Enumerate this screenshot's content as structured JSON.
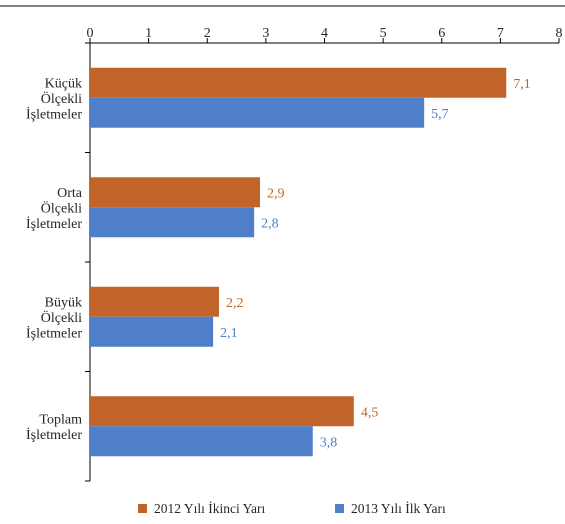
{
  "chart_data": {
    "type": "bar",
    "orientation": "horizontal",
    "categories": [
      [
        "Küçük",
        "Ölçekli",
        "İşletmeler"
      ],
      [
        "Orta",
        "Ölçekli",
        "İşletmeler"
      ],
      [
        "Büyük",
        "Ölçekli",
        "İşletmeler"
      ],
      [
        "Toplam",
        "İşletmeler"
      ]
    ],
    "series": [
      {
        "name": "2012 Yılı İkinci Yarı",
        "values": [
          7.1,
          2.9,
          2.2,
          4.5
        ],
        "labels": [
          "7,1",
          "2,9",
          "2,2",
          "4,5"
        ],
        "color": "#C0642A"
      },
      {
        "name": "2013 Yılı İlk Yarı",
        "values": [
          5.7,
          2.8,
          2.1,
          3.8
        ],
        "labels": [
          "5,7",
          "2,8",
          "2,1",
          "3,8"
        ],
        "color": "#4F7FC8"
      }
    ],
    "xlim": [
      0,
      8
    ],
    "xticks": [
      "0",
      "1",
      "2",
      "3",
      "4",
      "5",
      "6",
      "7",
      "8"
    ],
    "axis_position": "top",
    "grid": false,
    "legend_position": "bottom"
  }
}
